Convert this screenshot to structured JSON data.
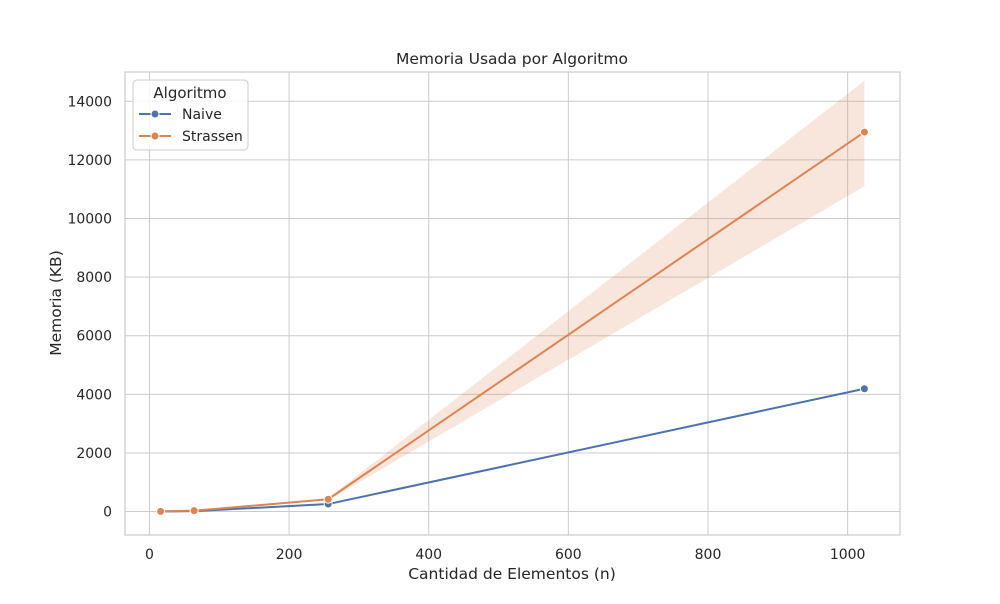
{
  "chart_data": {
    "type": "line",
    "title": "Memoria Usada por Algoritmo",
    "xlabel": "Cantidad de Elementos (n)",
    "ylabel": "Memoria (KB)",
    "xlim": [
      -35,
      1075
    ],
    "ylim": [
      -800,
      15000
    ],
    "xticks": [
      0,
      200,
      400,
      600,
      800,
      1000
    ],
    "yticks": [
      0,
      2000,
      4000,
      6000,
      8000,
      10000,
      12000,
      14000
    ],
    "grid": true,
    "legend": {
      "title": "Algoritmo",
      "position": "top-left"
    },
    "x": [
      16,
      64,
      256,
      1024
    ],
    "series": [
      {
        "name": "Naive",
        "color": "#4c72b0",
        "marker": "circle",
        "values": [
          2,
          16,
          256,
          4190
        ]
      },
      {
        "name": "Strassen",
        "color": "#dd8452",
        "marker": "circle",
        "values": [
          5,
          30,
          420,
          12950
        ],
        "ci_lower": [
          3,
          22,
          380,
          11100
        ],
        "ci_upper": [
          7,
          38,
          460,
          14700
        ]
      }
    ]
  }
}
